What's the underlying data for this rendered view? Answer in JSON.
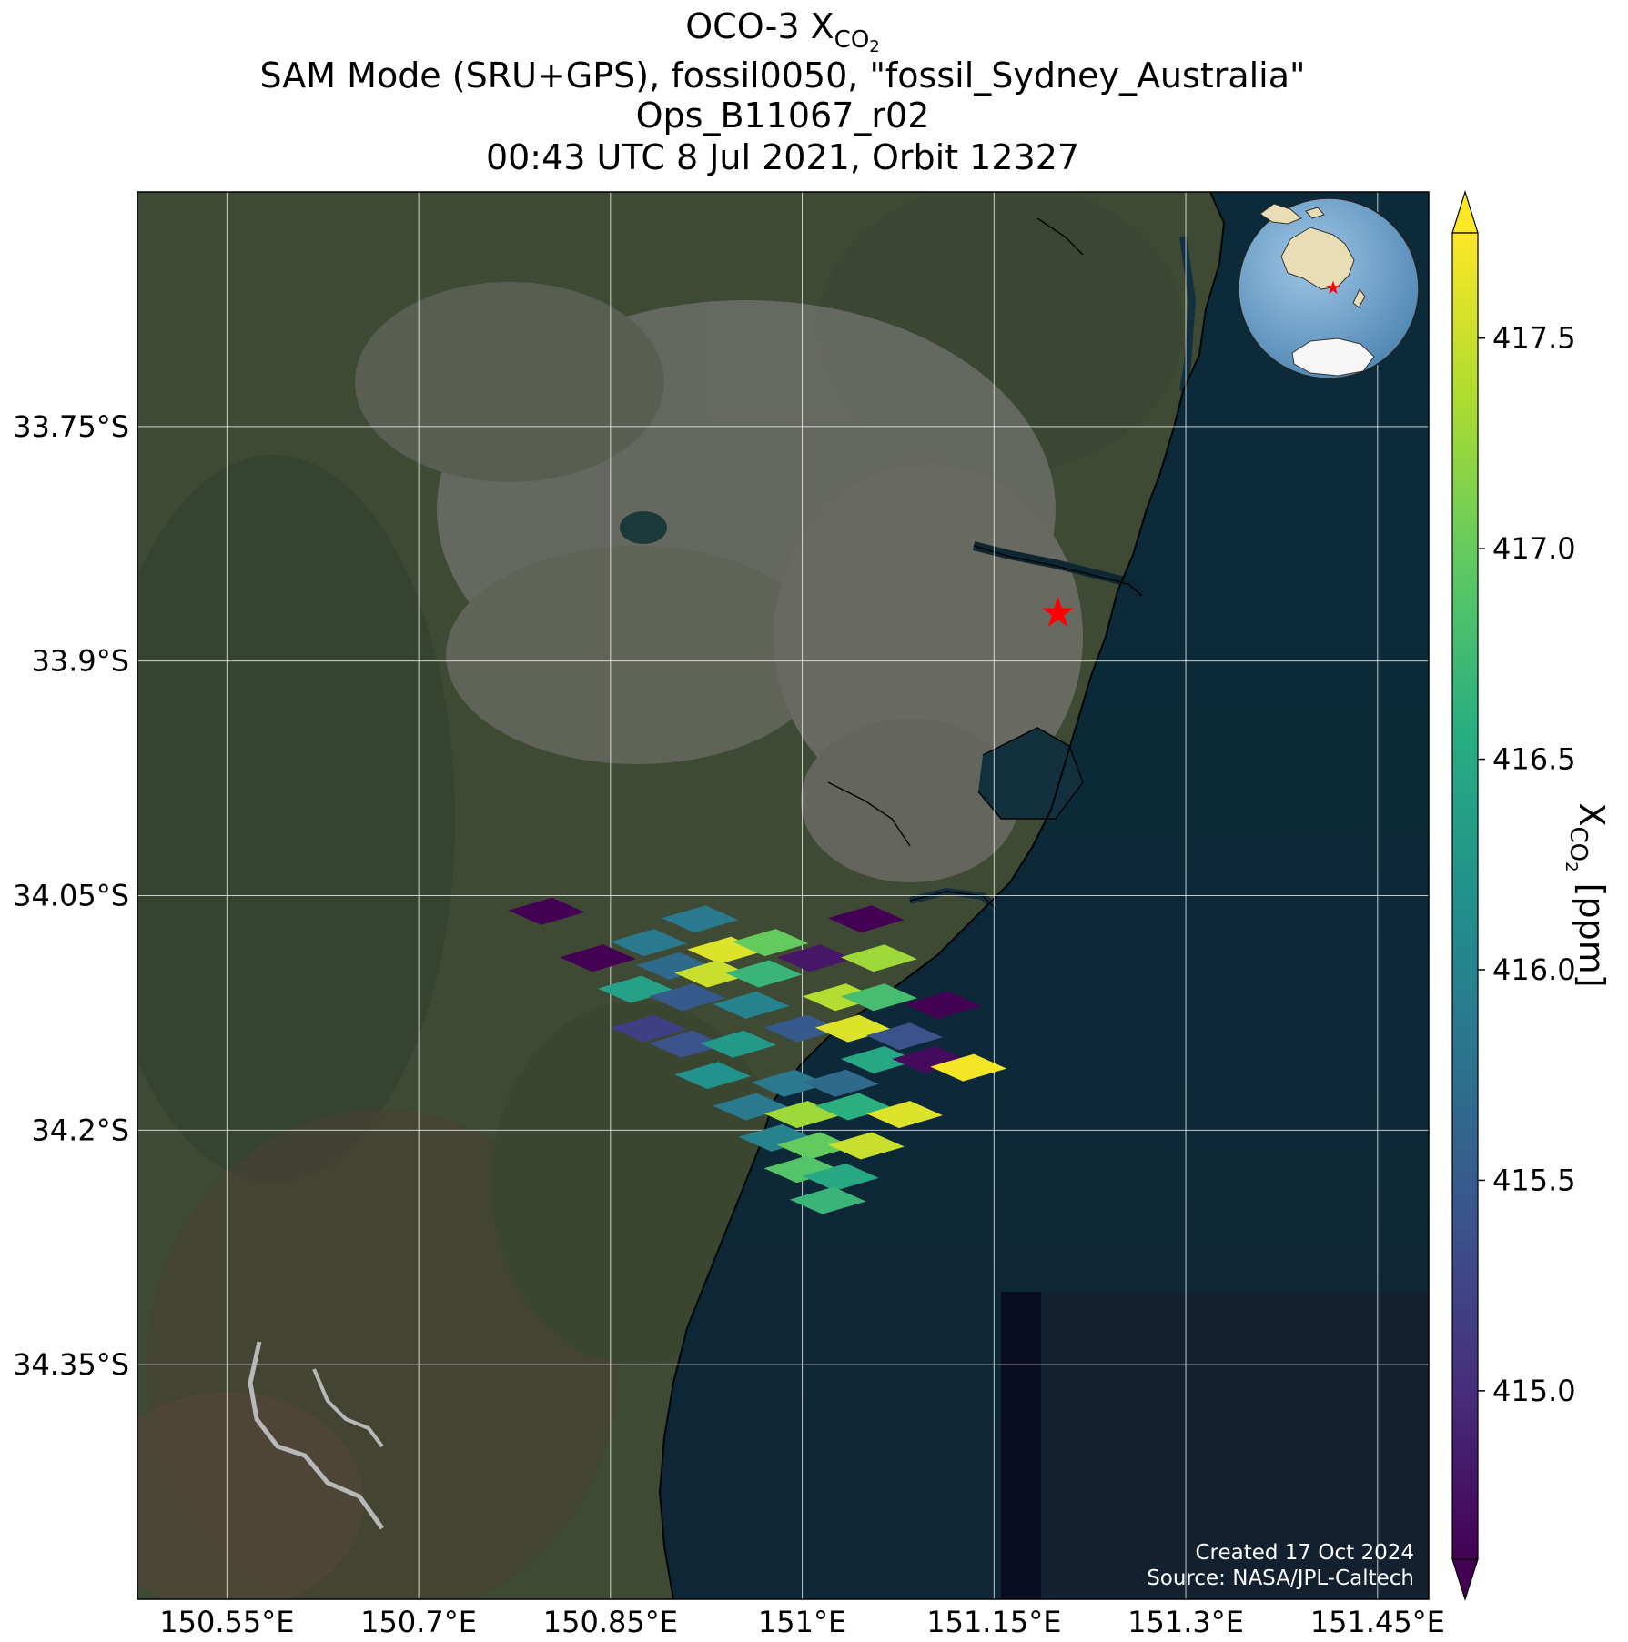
{
  "title": {
    "line1_prefix": "OCO-3 X",
    "line1_sub": "CO",
    "line1_subsub": "2",
    "line2": "SAM Mode (SRU+GPS), fossil0050, \"fossil_Sydney_Australia\"",
    "line3": "Ops_B11067_r02",
    "line4": "00:43 UTC 8 Jul 2021, Orbit 12327"
  },
  "map": {
    "lon_range": [
      150.48,
      151.49
    ],
    "lat_range": [
      -34.5,
      -33.6
    ],
    "lon_ticks": [
      {
        "value": 150.55,
        "label": "150.55°E"
      },
      {
        "value": 150.7,
        "label": "150.7°E"
      },
      {
        "value": 150.85,
        "label": "150.85°E"
      },
      {
        "value": 151.0,
        "label": "151°E"
      },
      {
        "value": 151.15,
        "label": "151.15°E"
      },
      {
        "value": 151.3,
        "label": "151.3°E"
      },
      {
        "value": 151.45,
        "label": "151.45°E"
      }
    ],
    "lat_ticks": [
      {
        "value": -33.75,
        "label": "33.75°S"
      },
      {
        "value": -33.9,
        "label": "33.9°S"
      },
      {
        "value": -34.05,
        "label": "34.05°S"
      },
      {
        "value": -34.2,
        "label": "34.2°S"
      },
      {
        "value": -34.35,
        "label": "34.35°S"
      }
    ],
    "target": {
      "name": "fossil_Sydney_Australia",
      "lon": 151.2,
      "lat": -33.87,
      "marker": "star",
      "color": "#ff0000"
    },
    "basemap": "satellite-imagery",
    "gridlines": true,
    "inset": "globe-locator",
    "colors": {
      "land": "#3f4a35",
      "urban": "#6d6e68",
      "ocean": "#0e2a38"
    }
  },
  "colorbar": {
    "label_prefix": "X",
    "label_sub": "CO",
    "label_subsub": "2",
    "label_suffix": " [ppm]",
    "colormap": "viridis",
    "range": [
      414.6,
      417.75
    ],
    "extend": "both",
    "ticks": [
      {
        "value": 417.5,
        "label": "417.5"
      },
      {
        "value": 417.0,
        "label": "417.0"
      },
      {
        "value": 416.5,
        "label": "416.5"
      },
      {
        "value": 416.0,
        "label": "416.0"
      },
      {
        "value": 415.5,
        "label": "415.5"
      },
      {
        "value": 415.0,
        "label": "415.0"
      }
    ]
  },
  "credits": {
    "created": "Created 17 Oct 2024",
    "source": "Source: NASA/JPL-Caltech"
  },
  "chart_data": {
    "type": "heatmap",
    "value_units": "ppm",
    "soundings": [
      {
        "lon": 150.8,
        "lat": -34.06,
        "xco2": 414.6
      },
      {
        "lon": 151.05,
        "lat": -34.065,
        "xco2": 414.6
      },
      {
        "lon": 150.84,
        "lat": -34.09,
        "xco2": 414.6
      },
      {
        "lon": 150.92,
        "lat": -34.065,
        "xco2": 415.9
      },
      {
        "lon": 150.88,
        "lat": -34.08,
        "xco2": 415.9
      },
      {
        "lon": 150.94,
        "lat": -34.085,
        "xco2": 417.6
      },
      {
        "lon": 150.975,
        "lat": -34.08,
        "xco2": 417.0
      },
      {
        "lon": 150.9,
        "lat": -34.095,
        "xco2": 415.7
      },
      {
        "lon": 150.93,
        "lat": -34.1,
        "xco2": 417.5
      },
      {
        "lon": 150.97,
        "lat": -34.1,
        "xco2": 416.7
      },
      {
        "lon": 151.01,
        "lat": -34.09,
        "xco2": 414.8
      },
      {
        "lon": 151.06,
        "lat": -34.09,
        "xco2": 417.3
      },
      {
        "lon": 150.87,
        "lat": -34.11,
        "xco2": 416.4
      },
      {
        "lon": 150.91,
        "lat": -34.115,
        "xco2": 415.5
      },
      {
        "lon": 150.96,
        "lat": -34.12,
        "xco2": 416.0
      },
      {
        "lon": 151.03,
        "lat": -34.115,
        "xco2": 417.4
      },
      {
        "lon": 151.06,
        "lat": -34.115,
        "xco2": 416.8
      },
      {
        "lon": 151.11,
        "lat": -34.12,
        "xco2": 414.6
      },
      {
        "lon": 150.88,
        "lat": -34.135,
        "xco2": 415.2
      },
      {
        "lon": 151.0,
        "lat": -34.135,
        "xco2": 415.5
      },
      {
        "lon": 151.04,
        "lat": -34.135,
        "xco2": 417.6
      },
      {
        "lon": 151.08,
        "lat": -34.14,
        "xco2": 415.4
      },
      {
        "lon": 150.91,
        "lat": -34.145,
        "xco2": 415.4
      },
      {
        "lon": 150.95,
        "lat": -34.145,
        "xco2": 416.3
      },
      {
        "lon": 151.06,
        "lat": -34.155,
        "xco2": 416.5
      },
      {
        "lon": 151.1,
        "lat": -34.155,
        "xco2": 414.7
      },
      {
        "lon": 151.13,
        "lat": -34.16,
        "xco2": 417.7
      },
      {
        "lon": 150.93,
        "lat": -34.165,
        "xco2": 416.2
      },
      {
        "lon": 150.99,
        "lat": -34.17,
        "xco2": 415.9
      },
      {
        "lon": 151.03,
        "lat": -34.17,
        "xco2": 415.7
      },
      {
        "lon": 150.96,
        "lat": -34.185,
        "xco2": 415.9
      },
      {
        "lon": 151.0,
        "lat": -34.19,
        "xco2": 417.3
      },
      {
        "lon": 151.04,
        "lat": -34.185,
        "xco2": 416.6
      },
      {
        "lon": 151.08,
        "lat": -34.19,
        "xco2": 417.6
      },
      {
        "lon": 150.98,
        "lat": -34.205,
        "xco2": 416.0
      },
      {
        "lon": 151.01,
        "lat": -34.21,
        "xco2": 417.0
      },
      {
        "lon": 151.05,
        "lat": -34.21,
        "xco2": 417.5
      },
      {
        "lon": 151.0,
        "lat": -34.225,
        "xco2": 416.9
      },
      {
        "lon": 151.03,
        "lat": -34.23,
        "xco2": 416.5
      },
      {
        "lon": 151.02,
        "lat": -34.245,
        "xco2": 416.7
      }
    ]
  }
}
